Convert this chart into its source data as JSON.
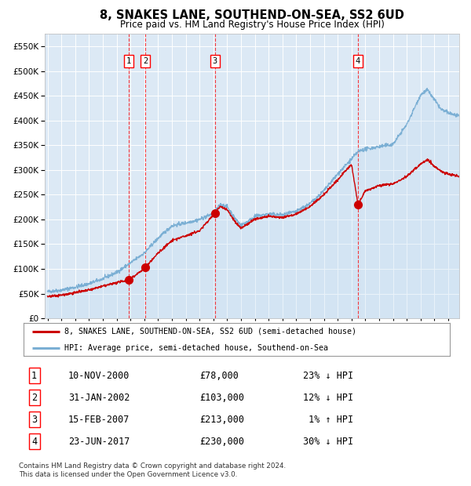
{
  "title": "8, SNAKES LANE, SOUTHEND-ON-SEA, SS2 6UD",
  "subtitle": "Price paid vs. HM Land Registry's House Price Index (HPI)",
  "bg_color": "#dce9f5",
  "hpi_color": "#7bafd4",
  "hpi_fill_color": "#c5ddf0",
  "price_color": "#cc0000",
  "fig_bg_color": "#ffffff",
  "transactions": [
    {
      "label": "1",
      "date_num": 2000.87,
      "price": 78000
    },
    {
      "label": "2",
      "date_num": 2002.08,
      "price": 103000
    },
    {
      "label": "3",
      "date_num": 2007.12,
      "price": 213000
    },
    {
      "label": "4",
      "date_num": 2017.47,
      "price": 230000
    }
  ],
  "legend_entries": [
    "8, SNAKES LANE, SOUTHEND-ON-SEA, SS2 6UD (semi-detached house)",
    "HPI: Average price, semi-detached house, Southend-on-Sea"
  ],
  "table_rows": [
    [
      "1",
      "10-NOV-2000",
      "£78,000",
      "23% ↓ HPI"
    ],
    [
      "2",
      "31-JAN-2002",
      "£103,000",
      "12% ↓ HPI"
    ],
    [
      "3",
      "15-FEB-2007",
      "£213,000",
      " 1% ↑ HPI"
    ],
    [
      "4",
      "23-JUN-2017",
      "£230,000",
      "30% ↓ HPI"
    ]
  ],
  "footer": "Contains HM Land Registry data © Crown copyright and database right 2024.\nThis data is licensed under the Open Government Licence v3.0.",
  "ylim": [
    0,
    575000
  ],
  "xlim_start": 1994.8,
  "xlim_end": 2024.8,
  "yticks": [
    0,
    50000,
    100000,
    150000,
    200000,
    250000,
    300000,
    350000,
    400000,
    450000,
    500000,
    550000
  ],
  "hpi_keypoints": [
    [
      1995.0,
      54000
    ],
    [
      1996.0,
      57000
    ],
    [
      1997.0,
      63000
    ],
    [
      1998.0,
      70000
    ],
    [
      1999.0,
      80000
    ],
    [
      2000.0,
      93000
    ],
    [
      2001.0,
      112000
    ],
    [
      2002.0,
      132000
    ],
    [
      2003.0,
      162000
    ],
    [
      2004.0,
      187000
    ],
    [
      2005.0,
      193000
    ],
    [
      2006.0,
      200000
    ],
    [
      2007.0,
      212000
    ],
    [
      2007.5,
      230000
    ],
    [
      2008.0,
      226000
    ],
    [
      2008.5,
      205000
    ],
    [
      2009.0,
      188000
    ],
    [
      2009.5,
      196000
    ],
    [
      2010.0,
      206000
    ],
    [
      2011.0,
      211000
    ],
    [
      2012.0,
      209000
    ],
    [
      2013.0,
      216000
    ],
    [
      2014.0,
      232000
    ],
    [
      2015.0,
      258000
    ],
    [
      2016.0,
      292000
    ],
    [
      2017.0,
      322000
    ],
    [
      2017.5,
      338000
    ],
    [
      2018.0,
      342000
    ],
    [
      2019.0,
      347000
    ],
    [
      2020.0,
      352000
    ],
    [
      2021.0,
      392000
    ],
    [
      2022.0,
      452000
    ],
    [
      2022.5,
      462000
    ],
    [
      2023.0,
      442000
    ],
    [
      2023.5,
      422000
    ],
    [
      2024.0,
      416000
    ],
    [
      2024.8,
      408000
    ]
  ],
  "price_keypoints": [
    [
      1995.0,
      44000
    ],
    [
      1996.0,
      47000
    ],
    [
      1997.0,
      52000
    ],
    [
      1998.0,
      57000
    ],
    [
      1999.0,
      65000
    ],
    [
      2000.0,
      72000
    ],
    [
      2000.87,
      78000
    ],
    [
      2001.5,
      90000
    ],
    [
      2002.08,
      103000
    ],
    [
      2003.0,
      132000
    ],
    [
      2004.0,
      157000
    ],
    [
      2005.0,
      167000
    ],
    [
      2006.0,
      177000
    ],
    [
      2007.12,
      213000
    ],
    [
      2007.5,
      226000
    ],
    [
      2008.0,
      220000
    ],
    [
      2008.5,
      198000
    ],
    [
      2009.0,
      182000
    ],
    [
      2009.5,
      191000
    ],
    [
      2010.0,
      201000
    ],
    [
      2011.0,
      206000
    ],
    [
      2012.0,
      204000
    ],
    [
      2013.0,
      211000
    ],
    [
      2014.0,
      226000
    ],
    [
      2015.0,
      250000
    ],
    [
      2016.0,
      280000
    ],
    [
      2017.0,
      312000
    ],
    [
      2017.47,
      230000
    ],
    [
      2018.0,
      258000
    ],
    [
      2019.0,
      268000
    ],
    [
      2020.0,
      272000
    ],
    [
      2021.0,
      287000
    ],
    [
      2022.0,
      312000
    ],
    [
      2022.5,
      322000
    ],
    [
      2023.0,
      307000
    ],
    [
      2023.5,
      297000
    ],
    [
      2024.0,
      292000
    ],
    [
      2024.8,
      287000
    ]
  ]
}
